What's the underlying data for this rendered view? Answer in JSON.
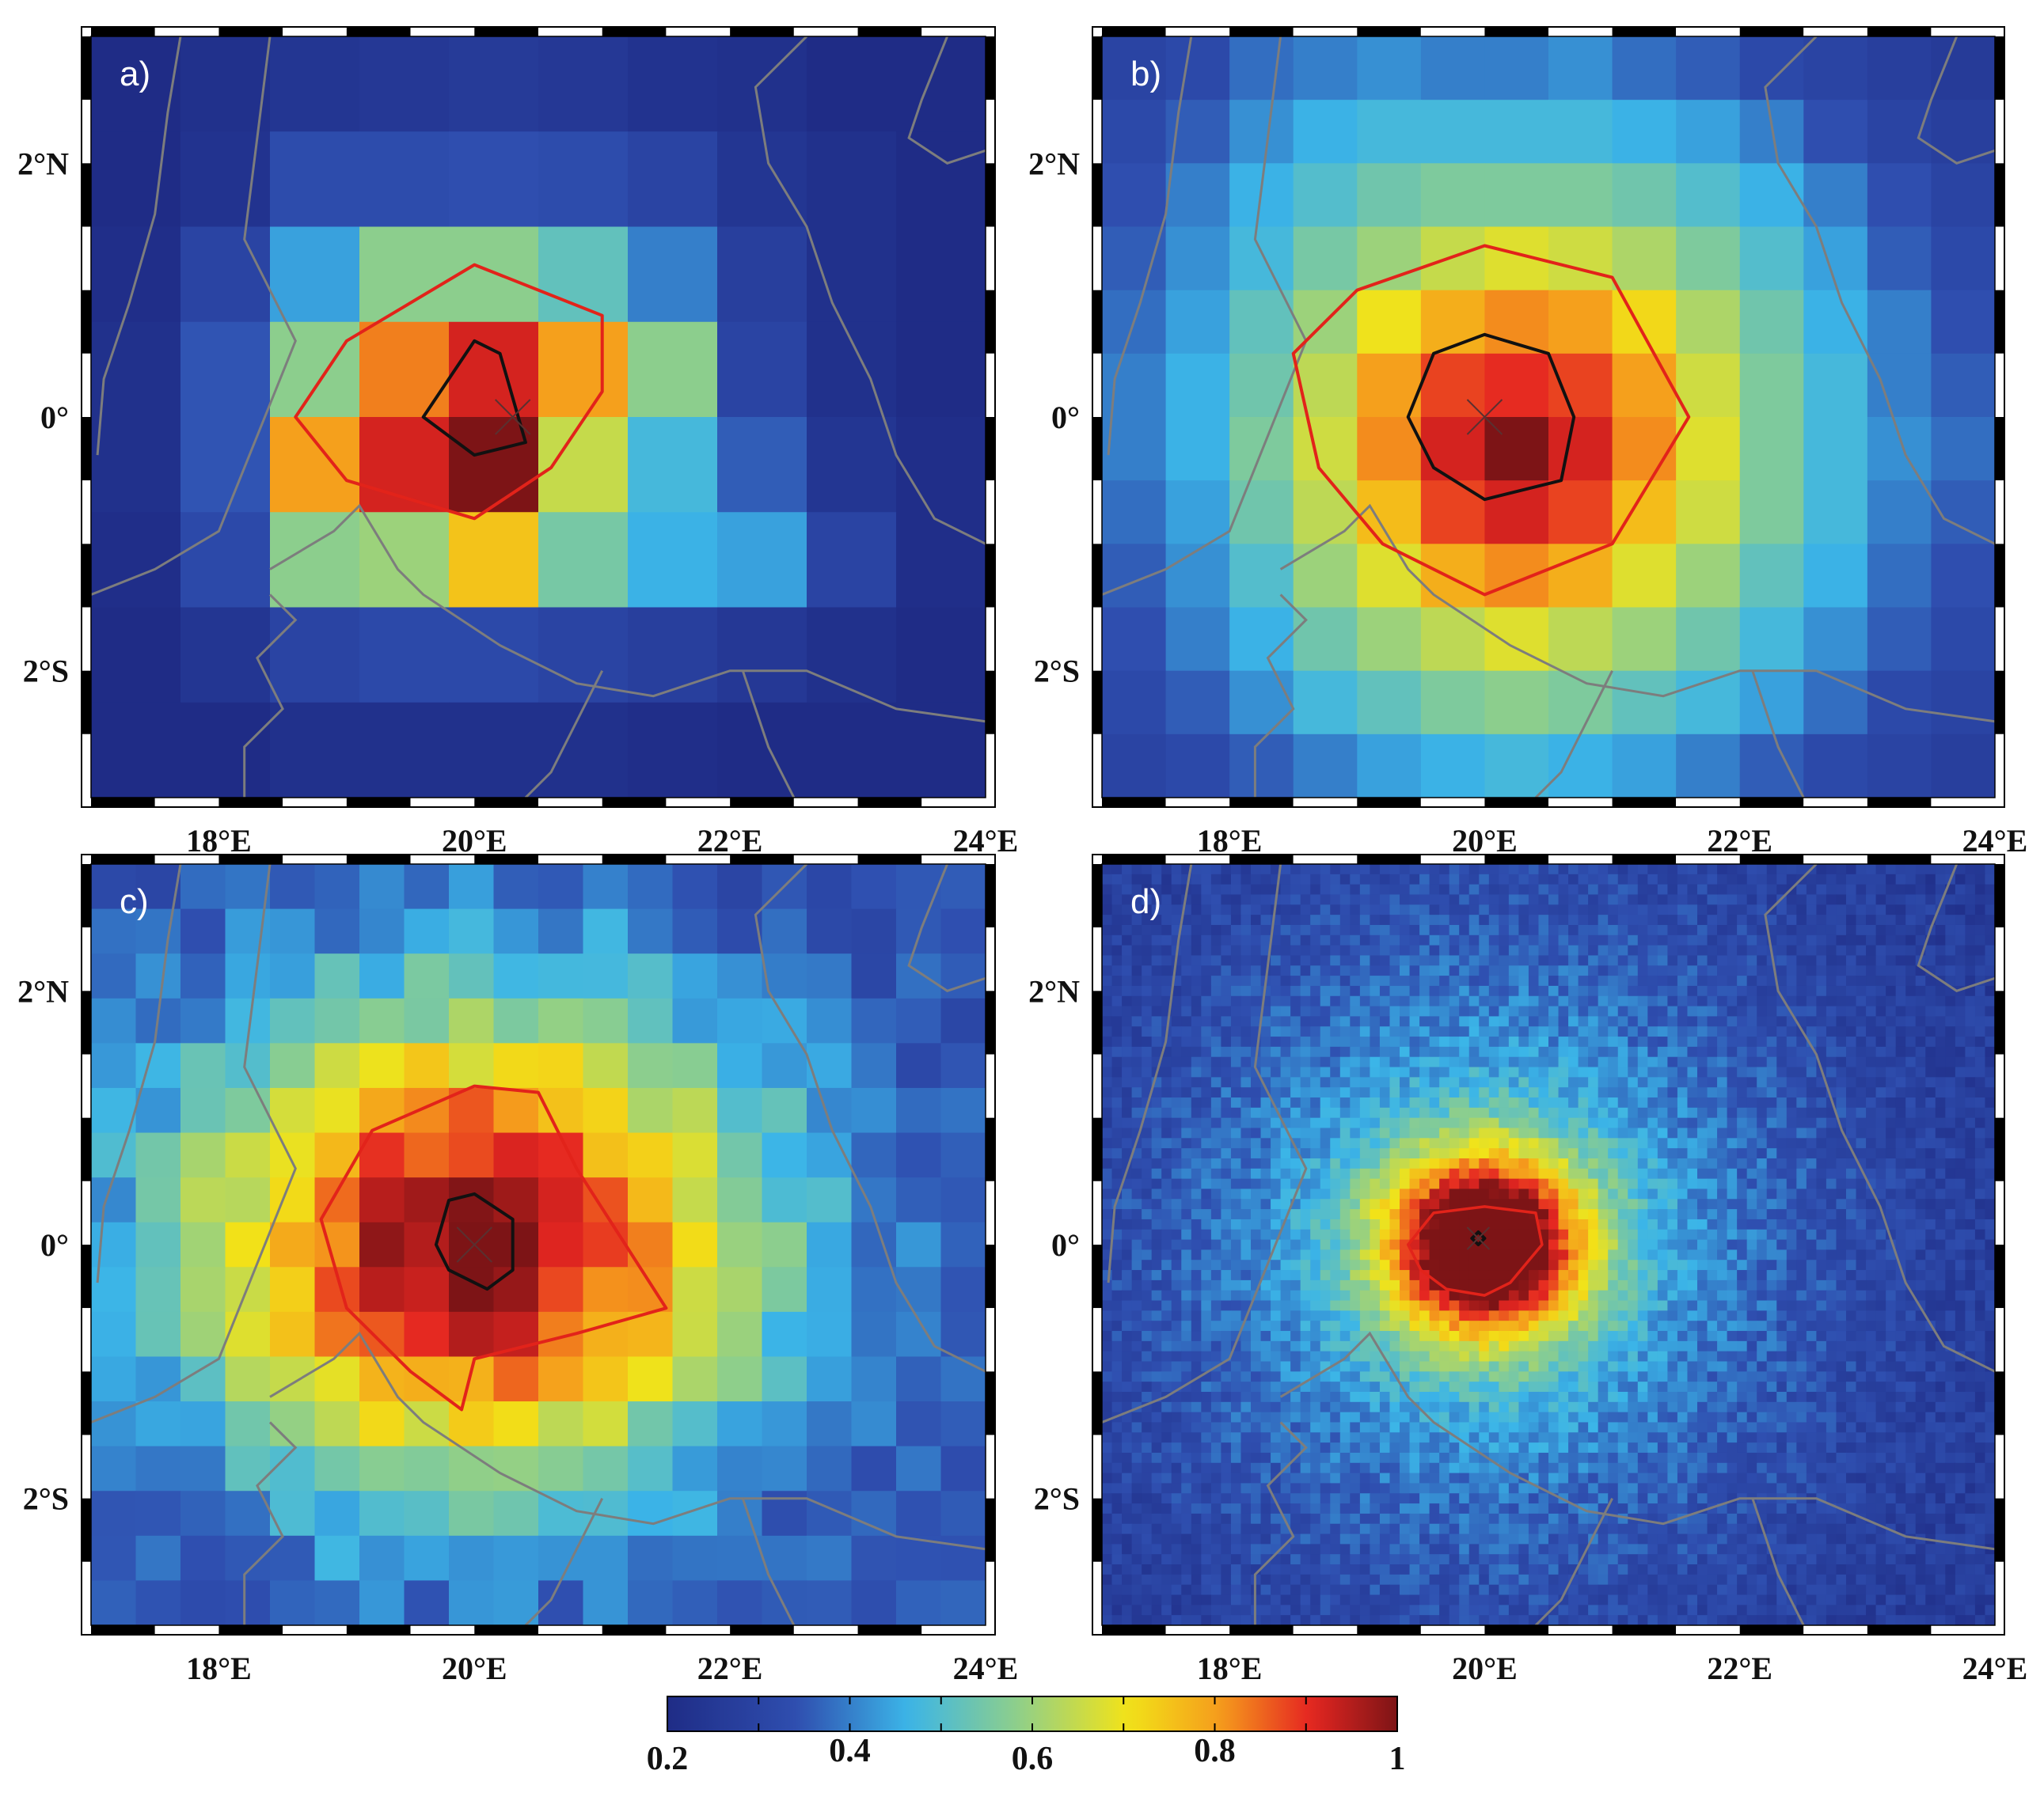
{
  "chart_data": [
    {
      "type": "heatmap",
      "panel_label": "a)",
      "grid": [
        10,
        8
      ],
      "xticks": [
        "18°E",
        "20°E",
        "22°E",
        "24°E"
      ],
      "xtick_values": [
        18,
        20,
        22,
        24
      ],
      "yticks": [
        "2°N",
        "0°",
        "2°S"
      ],
      "ytick_values": [
        2,
        0,
        -2
      ],
      "xlim": [
        17,
        24
      ],
      "ylim": [
        -3,
        3
      ],
      "center": [
        20.3,
        0
      ],
      "values": [
        [
          0.2,
          0.22,
          0.24,
          0.25,
          0.26,
          0.25,
          0.23,
          0.22,
          0.2,
          0.2
        ],
        [
          0.2,
          0.23,
          0.33,
          0.33,
          0.34,
          0.33,
          0.3,
          0.24,
          0.22,
          0.2
        ],
        [
          0.21,
          0.3,
          0.44,
          0.58,
          0.58,
          0.52,
          0.4,
          0.28,
          0.22,
          0.2
        ],
        [
          0.22,
          0.35,
          0.58,
          0.83,
          0.92,
          0.8,
          0.58,
          0.3,
          0.22,
          0.2
        ],
        [
          0.22,
          0.35,
          0.8,
          0.92,
          1.0,
          0.65,
          0.48,
          0.36,
          0.24,
          0.21
        ],
        [
          0.21,
          0.32,
          0.58,
          0.6,
          0.75,
          0.55,
          0.46,
          0.44,
          0.3,
          0.21
        ],
        [
          0.2,
          0.24,
          0.3,
          0.32,
          0.32,
          0.3,
          0.28,
          0.25,
          0.22,
          0.2
        ],
        [
          0.2,
          0.2,
          0.22,
          0.22,
          0.22,
          0.22,
          0.21,
          0.2,
          0.2,
          0.2
        ]
      ],
      "contours": {
        "red": [
          [
            18.6,
            0.0
          ],
          [
            19.0,
            0.6
          ],
          [
            20.0,
            1.2
          ],
          [
            21.0,
            0.8
          ],
          [
            21.0,
            0.2
          ],
          [
            20.6,
            -0.4
          ],
          [
            20.0,
            -0.8
          ],
          [
            19.0,
            -0.5
          ]
        ],
        "black": [
          [
            19.6,
            0.0
          ],
          [
            20.0,
            0.6
          ],
          [
            20.2,
            0.5
          ],
          [
            20.4,
            -0.2
          ],
          [
            20.0,
            -0.3
          ]
        ]
      }
    },
    {
      "type": "heatmap",
      "panel_label": "b)",
      "grid": [
        14,
        12
      ],
      "xticks": [
        "18°E",
        "20°E",
        "22°E",
        "24°E"
      ],
      "xtick_values": [
        18,
        20,
        22,
        24
      ],
      "yticks": [
        "2°N",
        "0°",
        "2°S"
      ],
      "ytick_values": [
        2,
        0,
        -2
      ],
      "xlim": [
        17,
        24
      ],
      "ylim": [
        -3,
        3
      ],
      "center": [
        20.0,
        0
      ],
      "values": [
        [
          0.3,
          0.32,
          0.38,
          0.4,
          0.42,
          0.4,
          0.4,
          0.42,
          0.38,
          0.36,
          0.32,
          0.3,
          0.28,
          0.26
        ],
        [
          0.32,
          0.36,
          0.42,
          0.46,
          0.48,
          0.48,
          0.48,
          0.48,
          0.46,
          0.44,
          0.4,
          0.34,
          0.3,
          0.28
        ],
        [
          0.34,
          0.4,
          0.46,
          0.5,
          0.54,
          0.56,
          0.56,
          0.56,
          0.54,
          0.5,
          0.46,
          0.4,
          0.34,
          0.3
        ],
        [
          0.36,
          0.42,
          0.48,
          0.55,
          0.6,
          0.65,
          0.68,
          0.66,
          0.62,
          0.56,
          0.5,
          0.44,
          0.36,
          0.32
        ],
        [
          0.38,
          0.44,
          0.52,
          0.6,
          0.7,
          0.78,
          0.82,
          0.8,
          0.72,
          0.62,
          0.54,
          0.46,
          0.4,
          0.34
        ],
        [
          0.4,
          0.46,
          0.54,
          0.64,
          0.8,
          0.88,
          0.9,
          0.88,
          0.8,
          0.66,
          0.56,
          0.48,
          0.4,
          0.36
        ],
        [
          0.4,
          0.46,
          0.56,
          0.66,
          0.82,
          0.92,
          1.0,
          0.92,
          0.82,
          0.68,
          0.56,
          0.48,
          0.42,
          0.38
        ],
        [
          0.38,
          0.44,
          0.54,
          0.64,
          0.76,
          0.88,
          0.92,
          0.88,
          0.76,
          0.66,
          0.56,
          0.48,
          0.4,
          0.36
        ],
        [
          0.36,
          0.42,
          0.5,
          0.6,
          0.68,
          0.78,
          0.82,
          0.78,
          0.68,
          0.6,
          0.52,
          0.46,
          0.38,
          0.34
        ],
        [
          0.34,
          0.4,
          0.46,
          0.54,
          0.6,
          0.64,
          0.68,
          0.64,
          0.6,
          0.54,
          0.48,
          0.42,
          0.36,
          0.32
        ],
        [
          0.32,
          0.36,
          0.42,
          0.48,
          0.52,
          0.56,
          0.58,
          0.56,
          0.52,
          0.48,
          0.44,
          0.38,
          0.32,
          0.3
        ],
        [
          0.3,
          0.32,
          0.36,
          0.4,
          0.44,
          0.46,
          0.48,
          0.46,
          0.44,
          0.4,
          0.36,
          0.32,
          0.3,
          0.28
        ]
      ],
      "contours": {
        "red": [
          [
            18.5,
            0.5
          ],
          [
            19.0,
            1.0
          ],
          [
            20.0,
            1.35
          ],
          [
            21.0,
            1.1
          ],
          [
            21.6,
            0.0
          ],
          [
            21.0,
            -1.0
          ],
          [
            20.0,
            -1.4
          ],
          [
            19.2,
            -1.0
          ],
          [
            18.7,
            -0.4
          ]
        ],
        "black": [
          [
            19.4,
            0.0
          ],
          [
            19.6,
            0.5
          ],
          [
            20.0,
            0.65
          ],
          [
            20.5,
            0.5
          ],
          [
            20.7,
            0.0
          ],
          [
            20.6,
            -0.5
          ],
          [
            20.0,
            -0.65
          ],
          [
            19.6,
            -0.4
          ]
        ]
      }
    },
    {
      "type": "heatmap",
      "panel_label": "c)",
      "grid": [
        20,
        17
      ],
      "xticks": [
        "18°E",
        "20°E",
        "22°E",
        "24°E"
      ],
      "xtick_values": [
        18,
        20,
        22,
        24
      ],
      "yticks": [
        "2°N",
        "0°",
        "2°S"
      ],
      "ytick_values": [
        2,
        0,
        -2
      ],
      "xlim": [
        17,
        24
      ],
      "ylim": [
        -3,
        3
      ],
      "center": [
        20.0,
        0
      ],
      "generator": {
        "cx": 20.0,
        "cy": 0.0,
        "sigma_x": 1.6,
        "sigma_y": 1.35,
        "base": 0.32,
        "amp": 0.68,
        "noise": 0.05
      },
      "contours": {
        "red": [
          [
            18.8,
            0.2
          ],
          [
            19.2,
            0.9
          ],
          [
            20.0,
            1.25
          ],
          [
            20.5,
            1.2
          ],
          [
            20.8,
            0.6
          ],
          [
            21.5,
            -0.5
          ],
          [
            20.8,
            -0.7
          ],
          [
            20.0,
            -0.9
          ],
          [
            19.9,
            -1.3
          ],
          [
            19.5,
            -1.0
          ],
          [
            19.0,
            -0.5
          ]
        ],
        "black": [
          [
            19.7,
            0.0
          ],
          [
            19.8,
            0.35
          ],
          [
            20.0,
            0.4
          ],
          [
            20.3,
            0.2
          ],
          [
            20.3,
            -0.2
          ],
          [
            20.1,
            -0.35
          ],
          [
            19.8,
            -0.2
          ]
        ]
      }
    },
    {
      "type": "heatmap",
      "panel_label": "d)",
      "grid": [
        90,
        75
      ],
      "xticks": [
        "18°E",
        "20°E",
        "22°E",
        "24°E"
      ],
      "xtick_values": [
        18,
        20,
        22,
        24
      ],
      "yticks": [
        "2°N",
        "0°",
        "2°S"
      ],
      "ytick_values": [
        2,
        0,
        -2
      ],
      "xlim": [
        17,
        24
      ],
      "ylim": [
        -3,
        3
      ],
      "center": [
        19.95,
        0.05
      ],
      "generator": {
        "cx": 20.0,
        "cy": 0.0,
        "sigma_x": 0.55,
        "sigma_y": 0.5,
        "base": 0.26,
        "amp": 0.74,
        "halo_sigma": 1.8,
        "halo_amp": 0.24,
        "noise": 0.05
      },
      "contours": {
        "red": [
          [
            19.4,
            0.0
          ],
          [
            19.6,
            0.25
          ],
          [
            20.0,
            0.3
          ],
          [
            20.4,
            0.25
          ],
          [
            20.45,
            0.0
          ],
          [
            20.2,
            -0.3
          ],
          [
            20.0,
            -0.4
          ],
          [
            19.7,
            -0.35
          ],
          [
            19.5,
            -0.2
          ]
        ],
        "black": [
          [
            19.9,
            0.05
          ],
          [
            19.95,
            0.1
          ],
          [
            20.0,
            0.05
          ],
          [
            19.95,
            0.0
          ]
        ]
      }
    }
  ],
  "colorbar": {
    "min": 0.2,
    "max": 1,
    "tick_labels": [
      "0.2",
      "0.4",
      "0.6",
      "0.8",
      "1"
    ],
    "tick_values": [
      0.2,
      0.4,
      0.6,
      0.8,
      1.0
    ],
    "colormap": "jet",
    "colors": [
      "#1f2c86",
      "#2f4fb0",
      "#3bb5e8",
      "#8fcf8a",
      "#f2e318",
      "#f59a1c",
      "#e52621",
      "#7d1416"
    ]
  },
  "contour_colors": {
    "outer": "#e2231a",
    "inner": "#111111"
  },
  "coastline_color": "#7d7d7d"
}
